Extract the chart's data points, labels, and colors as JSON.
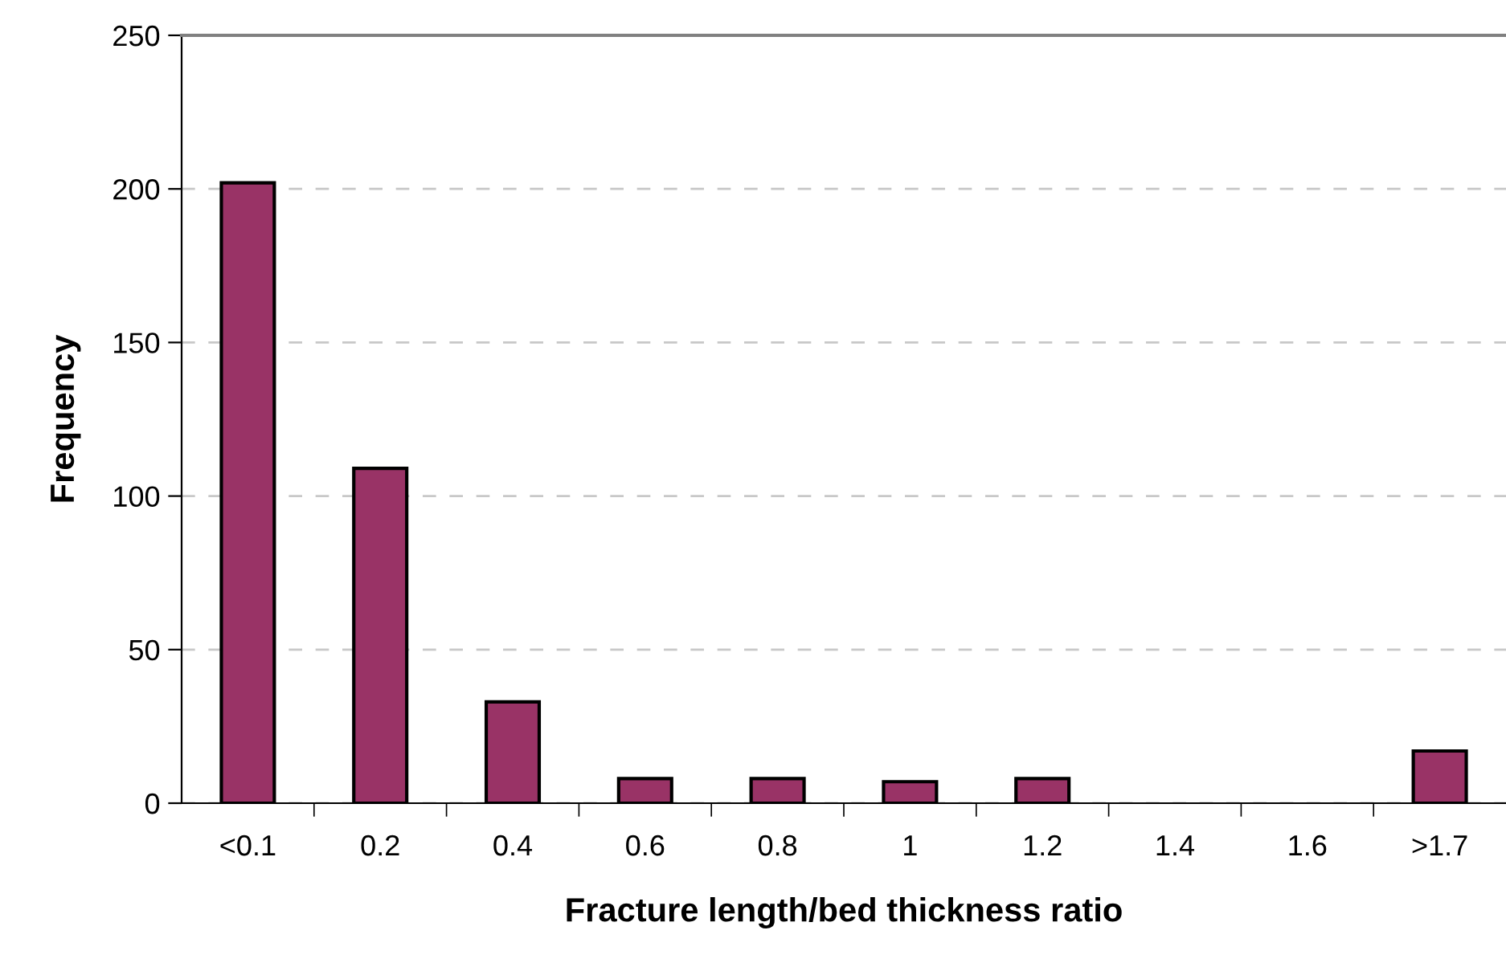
{
  "chart_data": {
    "type": "bar",
    "xlabel": "Fracture length/bed thickness ratio",
    "ylabel": "Frequency",
    "categories": [
      "<0.1",
      "0.2",
      "0.4",
      "0.6",
      "0.8",
      "1",
      "1.2",
      "1.4",
      "1.6",
      ">1.7"
    ],
    "values": [
      202,
      109,
      33,
      8,
      8,
      7,
      8,
      0,
      0,
      17
    ],
    "color": "#993366",
    "ylim": [
      0,
      250
    ],
    "yticks": [
      0,
      50,
      100,
      150,
      200,
      250
    ],
    "grid": "y"
  }
}
